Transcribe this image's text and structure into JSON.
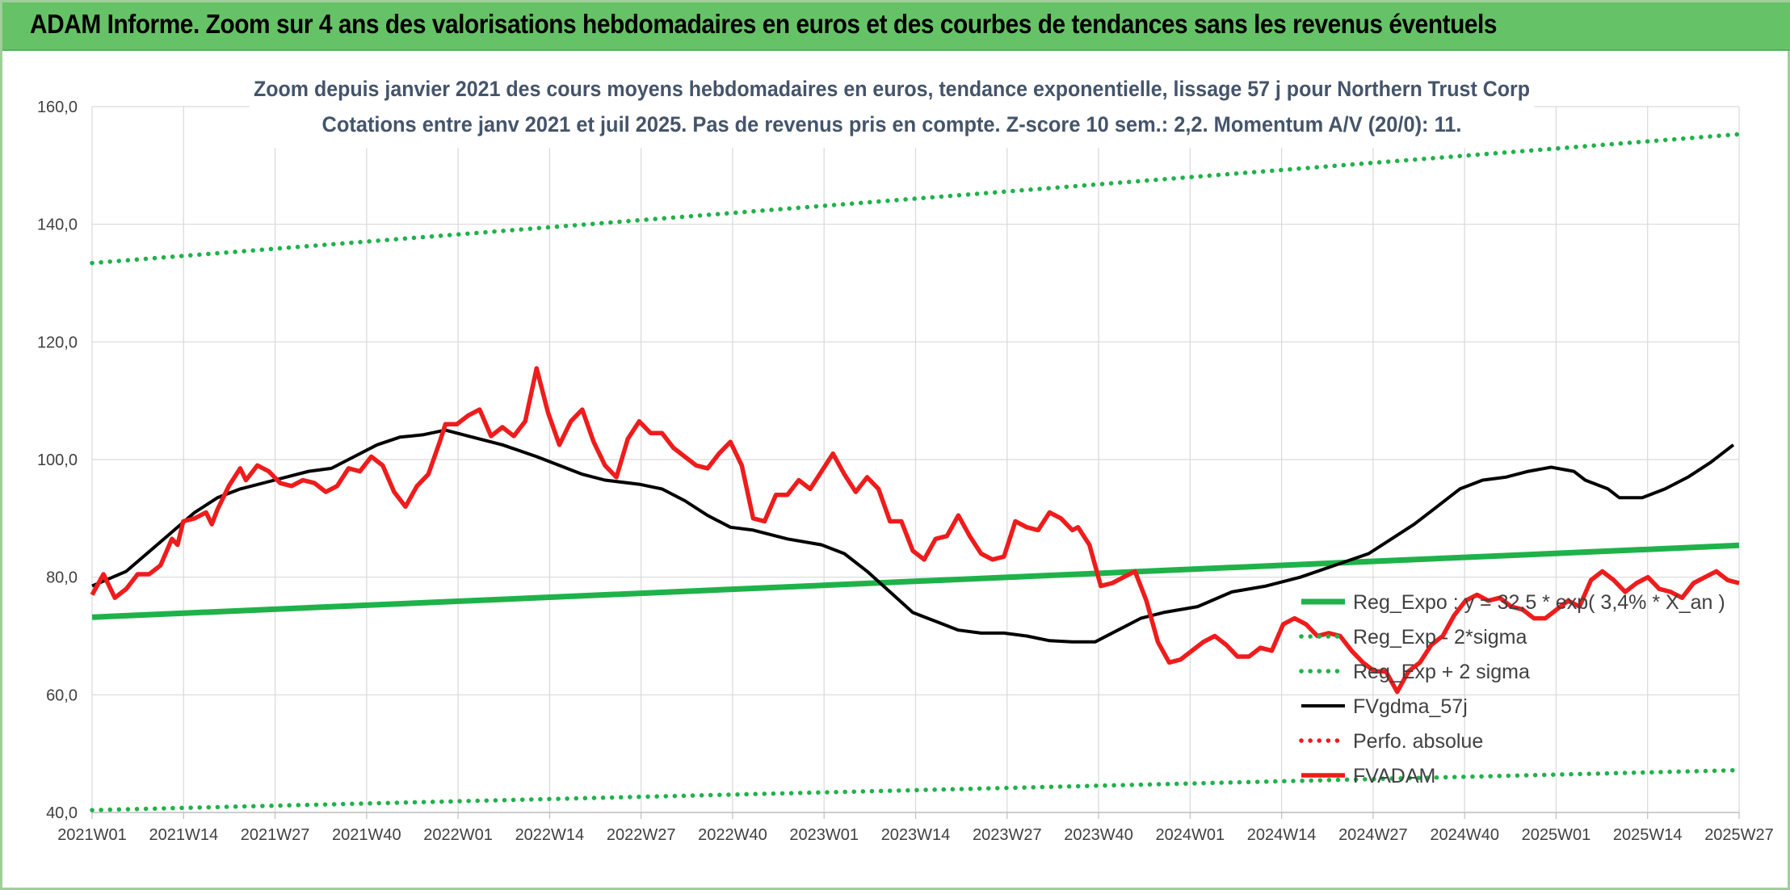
{
  "banner": {
    "title": "ADAM Informe. Zoom sur 4 ans des valorisations hebdomadaires en euros et des courbes de tendances sans les revenus éventuels"
  },
  "colors": {
    "banner_green": "#66c266",
    "trend_green": "#1fb24a",
    "price_red": "#ee1c1c",
    "smooth_black": "#000000",
    "title_text": "#44546a"
  },
  "chart_data": {
    "type": "line",
    "title": "Zoom depuis janvier 2021 des cours moyens hebdomadaires en euros, tendance exponentielle, lissage 57 j pour Northern Trust Corp",
    "subtitle": "Cotations entre janv 2021 et juil 2025. Pas de revenus pris en compte. Z-score 10 sem.: 2,2. Momentum A/V (20/0): 11.",
    "xlabel": "",
    "ylabel": "",
    "ylim": [
      40,
      160
    ],
    "yticks": [
      "40,0",
      "60,0",
      "80,0",
      "100,0",
      "120,0",
      "140,0",
      "160,0"
    ],
    "xticks": [
      "2021W01",
      "2021W14",
      "2021W27",
      "2021W40",
      "2022W01",
      "2022W14",
      "2022W27",
      "2022W40",
      "2023W01",
      "2023W14",
      "2023W27",
      "2023W40",
      "2024W01",
      "2024W14",
      "2024W27",
      "2024W40",
      "2025W01",
      "2025W14",
      "2025W27"
    ],
    "x_range_weeks": [
      0,
      234
    ],
    "grid": "vertical and horizontal",
    "legend_position": "bottom-right, inside plot",
    "series": [
      {
        "name": "Reg_Expo : y = 32,5 * exp( 3,4% *  X_an )",
        "style": "solid-thick",
        "color": "#1fb24a",
        "points": [
          [
            0,
            73.2
          ],
          [
            234,
            85.4
          ]
        ]
      },
      {
        "name": "Reg_Exp - 2*sigma",
        "style": "dotted",
        "color": "#1fb24a",
        "points": [
          [
            0,
            40.4
          ],
          [
            234,
            47.2
          ]
        ]
      },
      {
        "name": "Reg_Exp + 2 sigma",
        "style": "dotted",
        "color": "#1fb24a",
        "points": [
          [
            0,
            133.4
          ],
          [
            234,
            155.3
          ]
        ]
      },
      {
        "name": "FVgdma_57j",
        "style": "solid",
        "color": "#000000",
        "points": [
          [
            0,
            78.5
          ],
          [
            6,
            81
          ],
          [
            12,
            86
          ],
          [
            18,
            91
          ],
          [
            22,
            93.5
          ],
          [
            26,
            95
          ],
          [
            32,
            96.5
          ],
          [
            38,
            98
          ],
          [
            42,
            98.5
          ],
          [
            46,
            100.5
          ],
          [
            50,
            102.5
          ],
          [
            54,
            103.8
          ],
          [
            58,
            104.2
          ],
          [
            62,
            105
          ],
          [
            66,
            104
          ],
          [
            72,
            102.5
          ],
          [
            78,
            100.5
          ],
          [
            82,
            99
          ],
          [
            86,
            97.5
          ],
          [
            90,
            96.5
          ],
          [
            96,
            95.8
          ],
          [
            100,
            95
          ],
          [
            104,
            93
          ],
          [
            108,
            90.5
          ],
          [
            112,
            88.5
          ],
          [
            116,
            88
          ],
          [
            122,
            86.5
          ],
          [
            128,
            85.5
          ],
          [
            132,
            84
          ],
          [
            136,
            81
          ],
          [
            140,
            77.5
          ],
          [
            144,
            74
          ],
          [
            148,
            72.5
          ],
          [
            152,
            71
          ],
          [
            156,
            70.5
          ],
          [
            160,
            70.5
          ],
          [
            164,
            70
          ],
          [
            168,
            69.2
          ],
          [
            172,
            69
          ],
          [
            176,
            69
          ],
          [
            180,
            71
          ],
          [
            184,
            73
          ],
          [
            188,
            74
          ],
          [
            194,
            75
          ],
          [
            200,
            77.5
          ],
          [
            206,
            78.5
          ],
          [
            212,
            80
          ],
          [
            218,
            82
          ],
          [
            224,
            84
          ],
          [
            228,
            86.5
          ],
          [
            232,
            89
          ],
          [
            236,
            92
          ],
          [
            240,
            95
          ],
          [
            244,
            96.5
          ],
          [
            248,
            97
          ],
          [
            252,
            98
          ],
          [
            256,
            98.7
          ],
          [
            260,
            98
          ],
          [
            262,
            96.5
          ],
          [
            266,
            95
          ],
          [
            268,
            93.5
          ],
          [
            272,
            93.5
          ],
          [
            276,
            95
          ],
          [
            280,
            97
          ],
          [
            284,
            99.5
          ],
          [
            286,
            101
          ],
          [
            288,
            102.5
          ]
        ]
      },
      {
        "name": "Perfo. absolue",
        "style": "dotted",
        "color": "#ee1c1c",
        "points": []
      },
      {
        "name": "FVADAM",
        "style": "solid-thick",
        "color": "#ee1c1c",
        "points": [
          [
            0,
            77
          ],
          [
            2,
            80.5
          ],
          [
            4,
            76.5
          ],
          [
            6,
            78
          ],
          [
            8,
            80.5
          ],
          [
            10,
            80.5
          ],
          [
            12,
            82
          ],
          [
            14,
            86.5
          ],
          [
            15,
            85.5
          ],
          [
            16,
            89.5
          ],
          [
            18,
            90
          ],
          [
            20,
            91
          ],
          [
            21,
            89
          ],
          [
            22,
            91.5
          ],
          [
            24,
            95.5
          ],
          [
            26,
            98.5
          ],
          [
            27,
            96.5
          ],
          [
            29,
            99
          ],
          [
            31,
            98
          ],
          [
            33,
            96
          ],
          [
            35,
            95.5
          ],
          [
            37,
            96.5
          ],
          [
            39,
            96
          ],
          [
            41,
            94.5
          ],
          [
            43,
            95.5
          ],
          [
            45,
            98.5
          ],
          [
            47,
            98
          ],
          [
            49,
            100.5
          ],
          [
            51,
            99
          ],
          [
            53,
            94.5
          ],
          [
            55,
            92
          ],
          [
            57,
            95.5
          ],
          [
            59,
            97.5
          ],
          [
            61,
            103
          ],
          [
            62,
            106
          ],
          [
            64,
            106
          ],
          [
            66,
            107.5
          ],
          [
            68,
            108.5
          ],
          [
            70,
            104
          ],
          [
            72,
            105.5
          ],
          [
            74,
            104
          ],
          [
            76,
            106.5
          ],
          [
            78,
            115.5
          ],
          [
            80,
            108
          ],
          [
            82,
            102.5
          ],
          [
            84,
            106.5
          ],
          [
            86,
            108.5
          ],
          [
            88,
            103
          ],
          [
            90,
            99
          ],
          [
            92,
            97
          ],
          [
            94,
            103.5
          ],
          [
            96,
            106.5
          ],
          [
            98,
            104.5
          ],
          [
            100,
            104.5
          ],
          [
            102,
            102
          ],
          [
            104,
            100.5
          ],
          [
            106,
            99
          ],
          [
            108,
            98.5
          ],
          [
            110,
            101
          ],
          [
            112,
            103
          ],
          [
            114,
            99
          ],
          [
            116,
            90
          ],
          [
            118,
            89.5
          ],
          [
            120,
            94
          ],
          [
            122,
            94
          ],
          [
            124,
            96.5
          ],
          [
            126,
            95
          ],
          [
            128,
            98
          ],
          [
            130,
            101
          ],
          [
            132,
            97.5
          ],
          [
            134,
            94.5
          ],
          [
            136,
            97
          ],
          [
            138,
            95
          ],
          [
            140,
            89.5
          ],
          [
            142,
            89.5
          ],
          [
            144,
            84.5
          ],
          [
            146,
            83
          ],
          [
            148,
            86.5
          ],
          [
            150,
            87
          ],
          [
            152,
            90.5
          ],
          [
            154,
            87
          ],
          [
            156,
            84
          ],
          [
            158,
            83
          ],
          [
            160,
            83.5
          ],
          [
            162,
            89.5
          ],
          [
            164,
            88.5
          ],
          [
            166,
            88
          ],
          [
            168,
            91
          ],
          [
            170,
            90
          ],
          [
            172,
            88
          ],
          [
            173,
            88.5
          ],
          [
            175,
            85.5
          ],
          [
            177,
            78.5
          ],
          [
            179,
            79
          ],
          [
            181,
            80
          ],
          [
            183,
            81
          ],
          [
            185,
            76
          ],
          [
            187,
            69
          ],
          [
            189,
            65.5
          ],
          [
            191,
            66
          ],
          [
            193,
            67.5
          ],
          [
            195,
            69
          ],
          [
            197,
            70
          ],
          [
            199,
            68.5
          ],
          [
            201,
            66.5
          ],
          [
            203,
            66.5
          ],
          [
            205,
            68
          ],
          [
            207,
            67.5
          ],
          [
            209,
            72
          ],
          [
            211,
            73
          ],
          [
            213,
            72
          ],
          [
            215,
            70
          ],
          [
            217,
            70.5
          ],
          [
            219,
            70
          ],
          [
            221,
            67.5
          ],
          [
            223,
            65.5
          ],
          [
            225,
            64
          ],
          [
            227,
            64
          ],
          [
            229,
            60.5
          ],
          [
            231,
            64
          ],
          [
            233,
            65.5
          ],
          [
            235,
            68.5
          ],
          [
            237,
            70
          ],
          [
            239,
            73.5
          ],
          [
            241,
            76
          ],
          [
            243,
            77
          ],
          [
            245,
            76
          ],
          [
            247,
            76.5
          ],
          [
            249,
            75
          ],
          [
            251,
            74.5
          ],
          [
            253,
            73
          ],
          [
            255,
            73
          ],
          [
            257,
            74.5
          ],
          [
            259,
            76
          ],
          [
            261,
            75
          ],
          [
            263,
            79.5
          ],
          [
            265,
            81
          ],
          [
            267,
            79.5
          ],
          [
            269,
            77.5
          ],
          [
            271,
            79
          ],
          [
            273,
            80
          ],
          [
            275,
            78
          ],
          [
            277,
            77.5
          ],
          [
            279,
            76.5
          ],
          [
            281,
            79
          ],
          [
            283,
            80
          ],
          [
            285,
            81
          ],
          [
            287,
            79.5
          ],
          [
            289,
            79
          ]
        ]
      }
    ]
  }
}
